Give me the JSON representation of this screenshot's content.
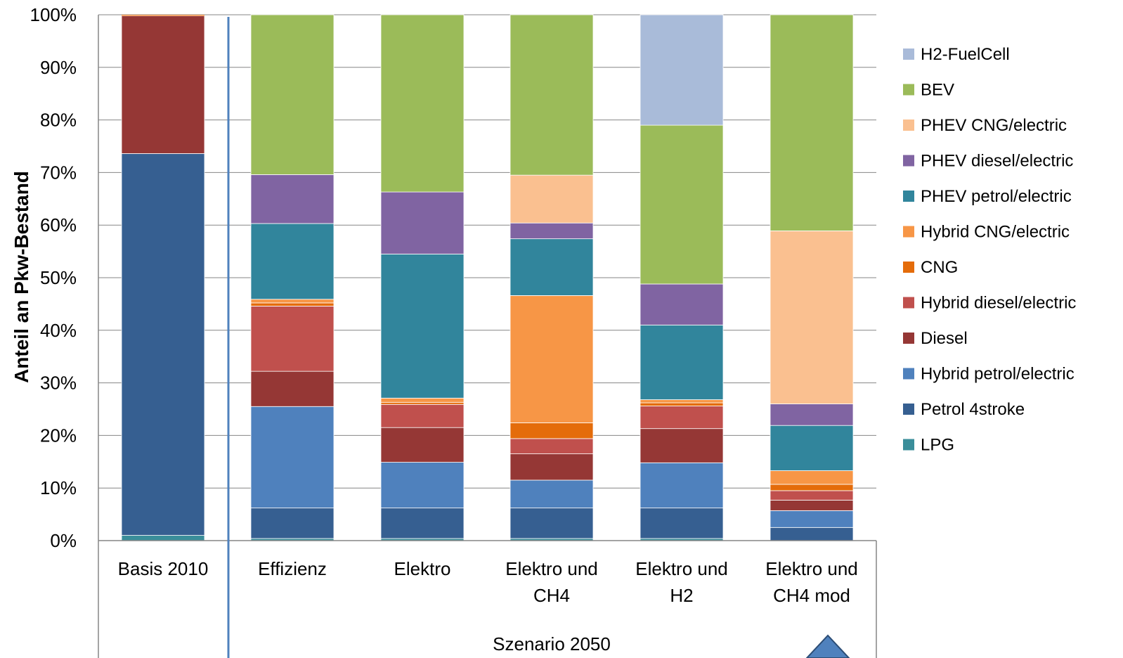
{
  "chart_data": {
    "type": "bar",
    "stacked": true,
    "percent_axis": true,
    "ylabel": "Anteil an Pkw-Bestand",
    "ylim": [
      0,
      100
    ],
    "yticks": [
      "0%",
      "10%",
      "20%",
      "30%",
      "40%",
      "50%",
      "60%",
      "70%",
      "80%",
      "90%",
      "100%"
    ],
    "grid": "horizontal",
    "legend_position": "right",
    "categories": [
      [
        "Basis 2010"
      ],
      [
        "Effizienz"
      ],
      [
        "Elektro"
      ],
      [
        "Elektro und",
        "CH4"
      ],
      [
        "Elektro und",
        "H2"
      ],
      [
        "Elektro und",
        "CH4 mod"
      ]
    ],
    "group_label": "Szenario 2050",
    "series": [
      {
        "name": "LPG",
        "color": "#3a8e9a",
        "values": [
          1.0,
          0.4,
          0.4,
          0.4,
          0.4,
          0.0
        ]
      },
      {
        "name": "Petrol 4stroke",
        "color": "#365f91",
        "values": [
          72.6,
          5.8,
          5.8,
          5.8,
          5.8,
          2.5
        ]
      },
      {
        "name": "Hybrid petrol/electric",
        "color": "#4f81bd",
        "values": [
          0,
          19.3,
          8.7,
          5.3,
          8.6,
          3.2
        ]
      },
      {
        "name": "Diesel",
        "color": "#953735",
        "values": [
          26.2,
          6.7,
          6.6,
          5.0,
          6.5,
          2.0
        ]
      },
      {
        "name": "Hybrid diesel/electric",
        "color": "#c0504d",
        "values": [
          0,
          12.4,
          4.4,
          2.9,
          4.3,
          1.8
        ]
      },
      {
        "name": "CNG",
        "color": "#e46c0a",
        "values": [
          0,
          0.6,
          0.4,
          3.0,
          0.6,
          1.2
        ]
      },
      {
        "name": "Hybrid CNG/electric",
        "color": "#f79646",
        "values": [
          0,
          0.7,
          0.8,
          24.2,
          0.6,
          2.6
        ]
      },
      {
        "name": "PHEV petrol/electric",
        "color": "#31859c",
        "values": [
          0,
          14.4,
          27.4,
          10.8,
          14.2,
          8.6
        ]
      },
      {
        "name": "PHEV diesel/electric",
        "color": "#8064a2",
        "values": [
          0,
          9.3,
          11.8,
          3.0,
          7.8,
          4.1
        ]
      },
      {
        "name": "PHEV CNG/electric",
        "color": "#fac090",
        "values": [
          0,
          0,
          0,
          9.1,
          0,
          32.9
        ]
      },
      {
        "name": "BEV",
        "color": "#9bbb59",
        "values": [
          0,
          30.4,
          33.7,
          30.5,
          30.2,
          41.1
        ]
      },
      {
        "name": "H2-FuelCell",
        "color": "#a9bbd9",
        "values": [
          0,
          0,
          0,
          0,
          21.0,
          0
        ]
      }
    ],
    "top_sliver": {
      "category": 0,
      "color": "#f79646",
      "value": 0.2
    }
  }
}
